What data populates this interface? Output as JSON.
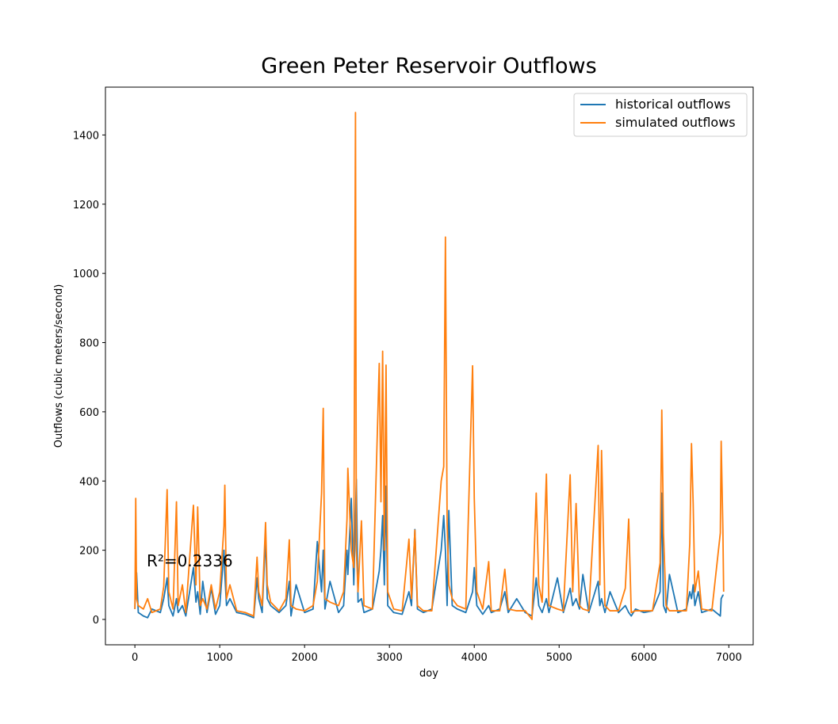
{
  "chart_data": {
    "type": "line",
    "title": "Green Peter Reservoir Outflows",
    "x_label": "doy",
    "y_label": "Outflows (cubic meters/second)",
    "annotation": "R²=0.2336",
    "legend": "upper right",
    "xlim": [
      -347,
      7287
    ],
    "ylim": [
      -73.25,
      1538.25
    ],
    "xticks": [
      0,
      1000,
      2000,
      3000,
      4000,
      5000,
      6000,
      7000
    ],
    "yticks": [
      0,
      200,
      400,
      600,
      800,
      1000,
      1200,
      1400
    ],
    "x": [
      0,
      10,
      20,
      40,
      100,
      150,
      200,
      300,
      340,
      380,
      400,
      450,
      490,
      510,
      560,
      600,
      690,
      720,
      740,
      770,
      800,
      850,
      900,
      950,
      1000,
      1050,
      1060,
      1080,
      1120,
      1200,
      1300,
      1400,
      1440,
      1460,
      1500,
      1540,
      1560,
      1600,
      1700,
      1780,
      1820,
      1840,
      1900,
      2000,
      2100,
      2150,
      2200,
      2220,
      2240,
      2300,
      2400,
      2460,
      2500,
      2510,
      2550,
      2580,
      2600,
      2610,
      2630,
      2670,
      2700,
      2800,
      2880,
      2900,
      2920,
      2940,
      2960,
      2980,
      3050,
      3150,
      3230,
      3260,
      3300,
      3330,
      3400,
      3500,
      3610,
      3640,
      3660,
      3680,
      3700,
      3740,
      3800,
      3900,
      3980,
      4000,
      4030,
      4100,
      4170,
      4200,
      4300,
      4360,
      4400,
      4500,
      4600,
      4680,
      4730,
      4760,
      4800,
      4850,
      4880,
      4980,
      5050,
      5130,
      5160,
      5200,
      5240,
      5280,
      5350,
      5460,
      5480,
      5500,
      5540,
      5600,
      5700,
      5780,
      5820,
      5850,
      5900,
      6000,
      6100,
      6190,
      6210,
      6230,
      6260,
      6300,
      6400,
      6500,
      6540,
      6560,
      6580,
      6600,
      6640,
      6680,
      6800,
      6900,
      6910,
      6930,
      6939
    ],
    "series": [
      {
        "name": "historical outflows",
        "color": "#1f77b4",
        "values": [
          30,
          130,
          135,
          20,
          10,
          5,
          30,
          20,
          60,
          120,
          40,
          10,
          60,
          20,
          40,
          10,
          150,
          50,
          80,
          15,
          110,
          20,
          90,
          15,
          40,
          200,
          130,
          40,
          60,
          20,
          15,
          5,
          120,
          60,
          20,
          240,
          60,
          40,
          20,
          40,
          110,
          10,
          100,
          20,
          30,
          225,
          80,
          200,
          30,
          110,
          20,
          40,
          200,
          130,
          350,
          100,
          300,
          405,
          50,
          60,
          20,
          30,
          140,
          200,
          300,
          100,
          385,
          40,
          20,
          15,
          80,
          40,
          260,
          30,
          20,
          30,
          200,
          300,
          200,
          40,
          315,
          40,
          30,
          20,
          80,
          150,
          40,
          15,
          40,
          20,
          30,
          80,
          20,
          60,
          20,
          10,
          120,
          40,
          20,
          60,
          20,
          120,
          20,
          90,
          40,
          60,
          30,
          130,
          20,
          110,
          40,
          60,
          20,
          80,
          20,
          40,
          20,
          10,
          30,
          20,
          25,
          80,
          365,
          40,
          20,
          130,
          20,
          30,
          80,
          60,
          100,
          40,
          80,
          20,
          30,
          10,
          60,
          70,
          70
        ]
      },
      {
        "name": "simulated outflows",
        "color": "#ff7f0e",
        "values": [
          30,
          350,
          60,
          40,
          30,
          60,
          20,
          30,
          95,
          375,
          80,
          30,
          340,
          40,
          100,
          20,
          330,
          100,
          325,
          40,
          60,
          30,
          100,
          30,
          80,
          270,
          388,
          60,
          100,
          25,
          20,
          10,
          180,
          80,
          40,
          280,
          100,
          50,
          25,
          60,
          230,
          40,
          30,
          25,
          40,
          110,
          365,
          610,
          60,
          50,
          40,
          80,
          290,
          437,
          200,
          150,
          1465,
          200,
          80,
          285,
          40,
          30,
          740,
          340,
          775,
          200,
          735,
          80,
          30,
          25,
          232,
          60,
          258,
          40,
          25,
          25,
          400,
          442,
          1105,
          280,
          100,
          60,
          40,
          30,
          733,
          350,
          80,
          30,
          167,
          25,
          25,
          145,
          30,
          25,
          25,
          0,
          365,
          100,
          50,
          420,
          40,
          30,
          25,
          418,
          80,
          335,
          40,
          30,
          25,
          503,
          100,
          488,
          40,
          25,
          25,
          90,
          290,
          20,
          25,
          25,
          25,
          163,
          605,
          250,
          40,
          25,
          25,
          25,
          220,
          508,
          333,
          80,
          140,
          30,
          25,
          250,
          515,
          262,
          80
        ]
      }
    ]
  }
}
